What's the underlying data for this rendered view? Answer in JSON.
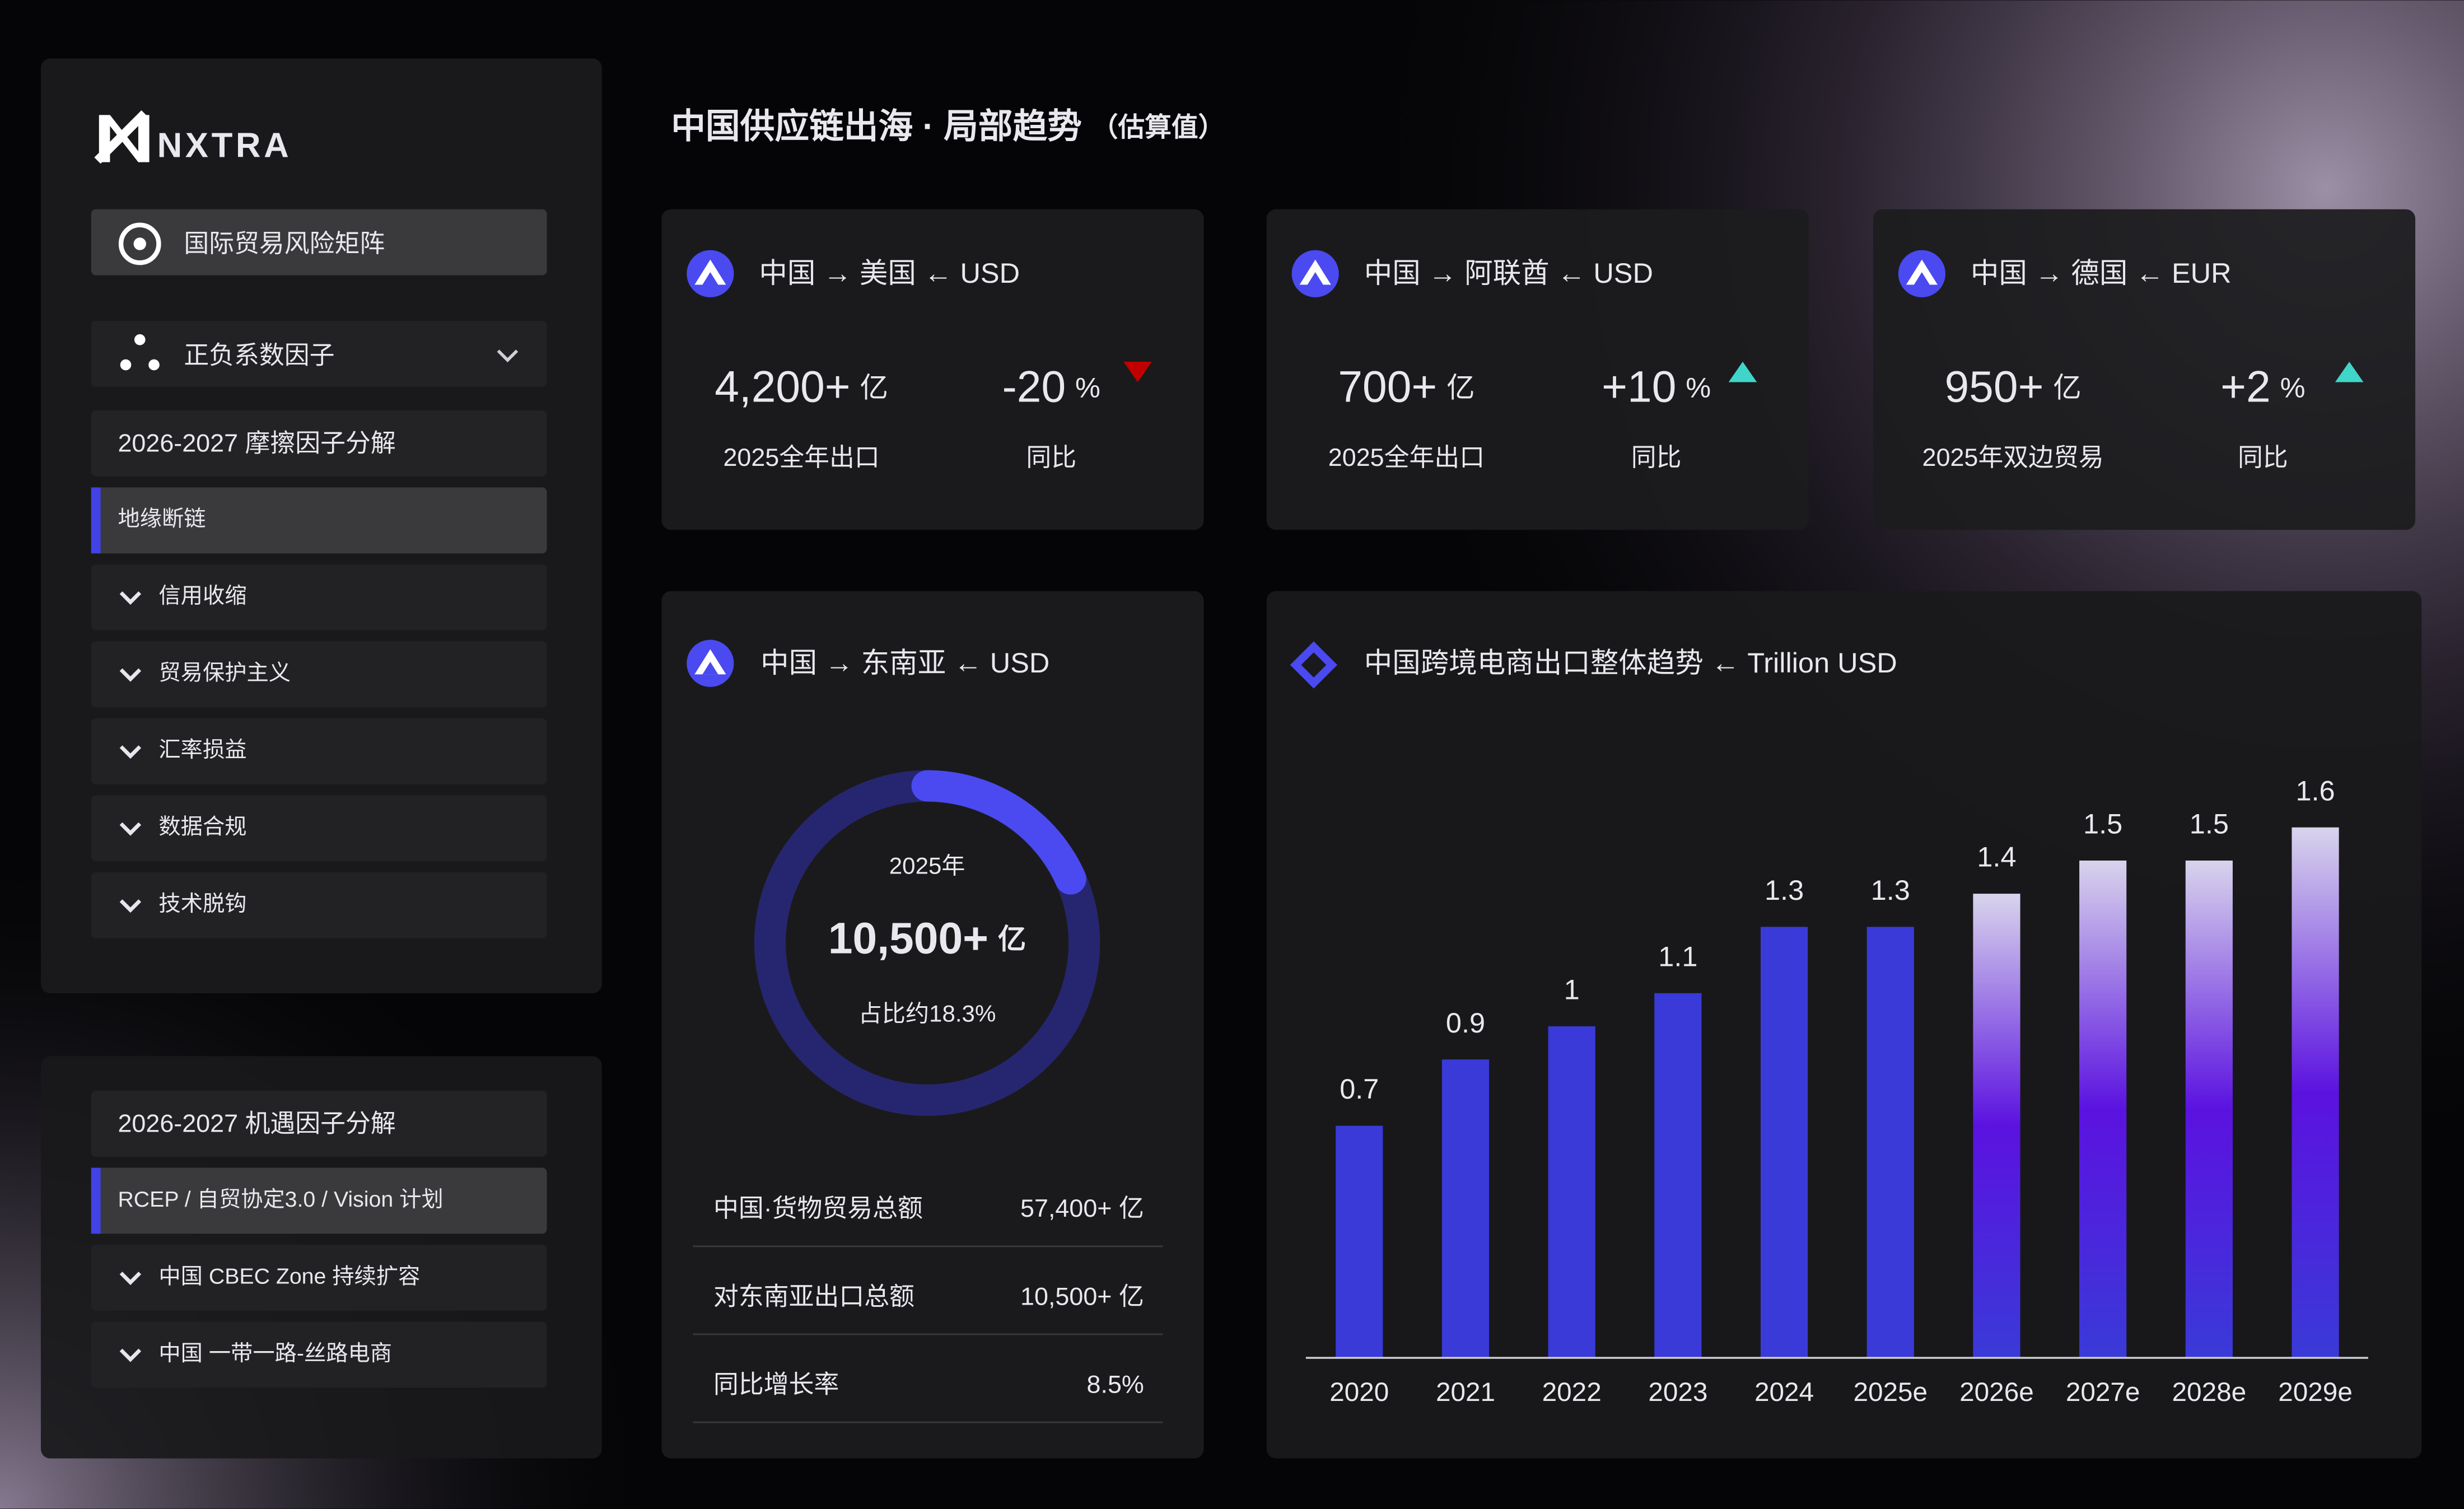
{
  "sidebar": {
    "logo": "NXTRA",
    "matrix_button": "国际贸易风险矩阵",
    "factor_menu": "正负系数因子",
    "friction": {
      "title": "2026-2027 摩擦因子分解",
      "active": "地缘断链",
      "items": [
        "信用收缩",
        "贸易保护主义",
        "汇率损益",
        "数据合规",
        "技术脱钩"
      ]
    },
    "opportunity": {
      "title": "2026-2027 机遇因子分解",
      "active": "RCEP / 自贸协定3.0 / Vision 计划",
      "items": [
        "中国 CBEC Zone 持续扩容",
        "中国 一带一路-丝路电商"
      ]
    }
  },
  "header": {
    "title": "中国供应链出海 · 局部趋势",
    "note": "（估算值）"
  },
  "kpis": [
    {
      "title": "中国 → 美国 ← USD",
      "value": "4,200+",
      "unit": "亿",
      "caption": "2025全年出口",
      "change": "-20",
      "change_unit": "%",
      "change_caption": "同比",
      "trend": "down"
    },
    {
      "title": "中国 → 阿联酋 ← USD",
      "value": "700+",
      "unit": "亿",
      "caption": "2025全年出口",
      "change": "+10",
      "change_unit": "%",
      "change_caption": "同比",
      "trend": "up"
    },
    {
      "title": "中国 → 德国 ← EUR",
      "value": "950+",
      "unit": "亿",
      "caption": "2025年双边贸易",
      "change": "+2",
      "change_unit": "%",
      "change_caption": "同比",
      "trend": "up"
    }
  ],
  "asean": {
    "title": "中国 → 东南亚 ← USD",
    "ring": {
      "year": "2025年",
      "value": "10,500+",
      "unit": "亿",
      "share": 18.3,
      "share_label": "占比约18.3%"
    },
    "rows": [
      [
        "中国·货物贸易总额",
        "57,400+ 亿"
      ],
      [
        "对东南亚出口总额",
        "10,500+ 亿"
      ],
      [
        "同比增长率",
        "8.5%"
      ]
    ]
  },
  "chart_data": {
    "type": "bar",
    "title": "中国跨境电商出口整体趋势 ← Trillion USD",
    "categories": [
      "2020",
      "2021",
      "2022",
      "2023",
      "2024",
      "2025e",
      "2026e",
      "2027e",
      "2028e",
      "2029e"
    ],
    "values": [
      0.7,
      0.9,
      1,
      1.1,
      1.3,
      1.3,
      1.4,
      1.5,
      1.5,
      1.6
    ],
    "color": "#3a3ad8",
    "fills": [
      "solid",
      "solid",
      "solid",
      "solid",
      "solid",
      "solid",
      "gradient",
      "gradient",
      "gradient",
      "gradient"
    ],
    "gradient": [
      "#d8d4ec",
      "#5b12e0",
      "#3a3ad8"
    ],
    "ylim": [
      0,
      2
    ],
    "grid": false
  }
}
